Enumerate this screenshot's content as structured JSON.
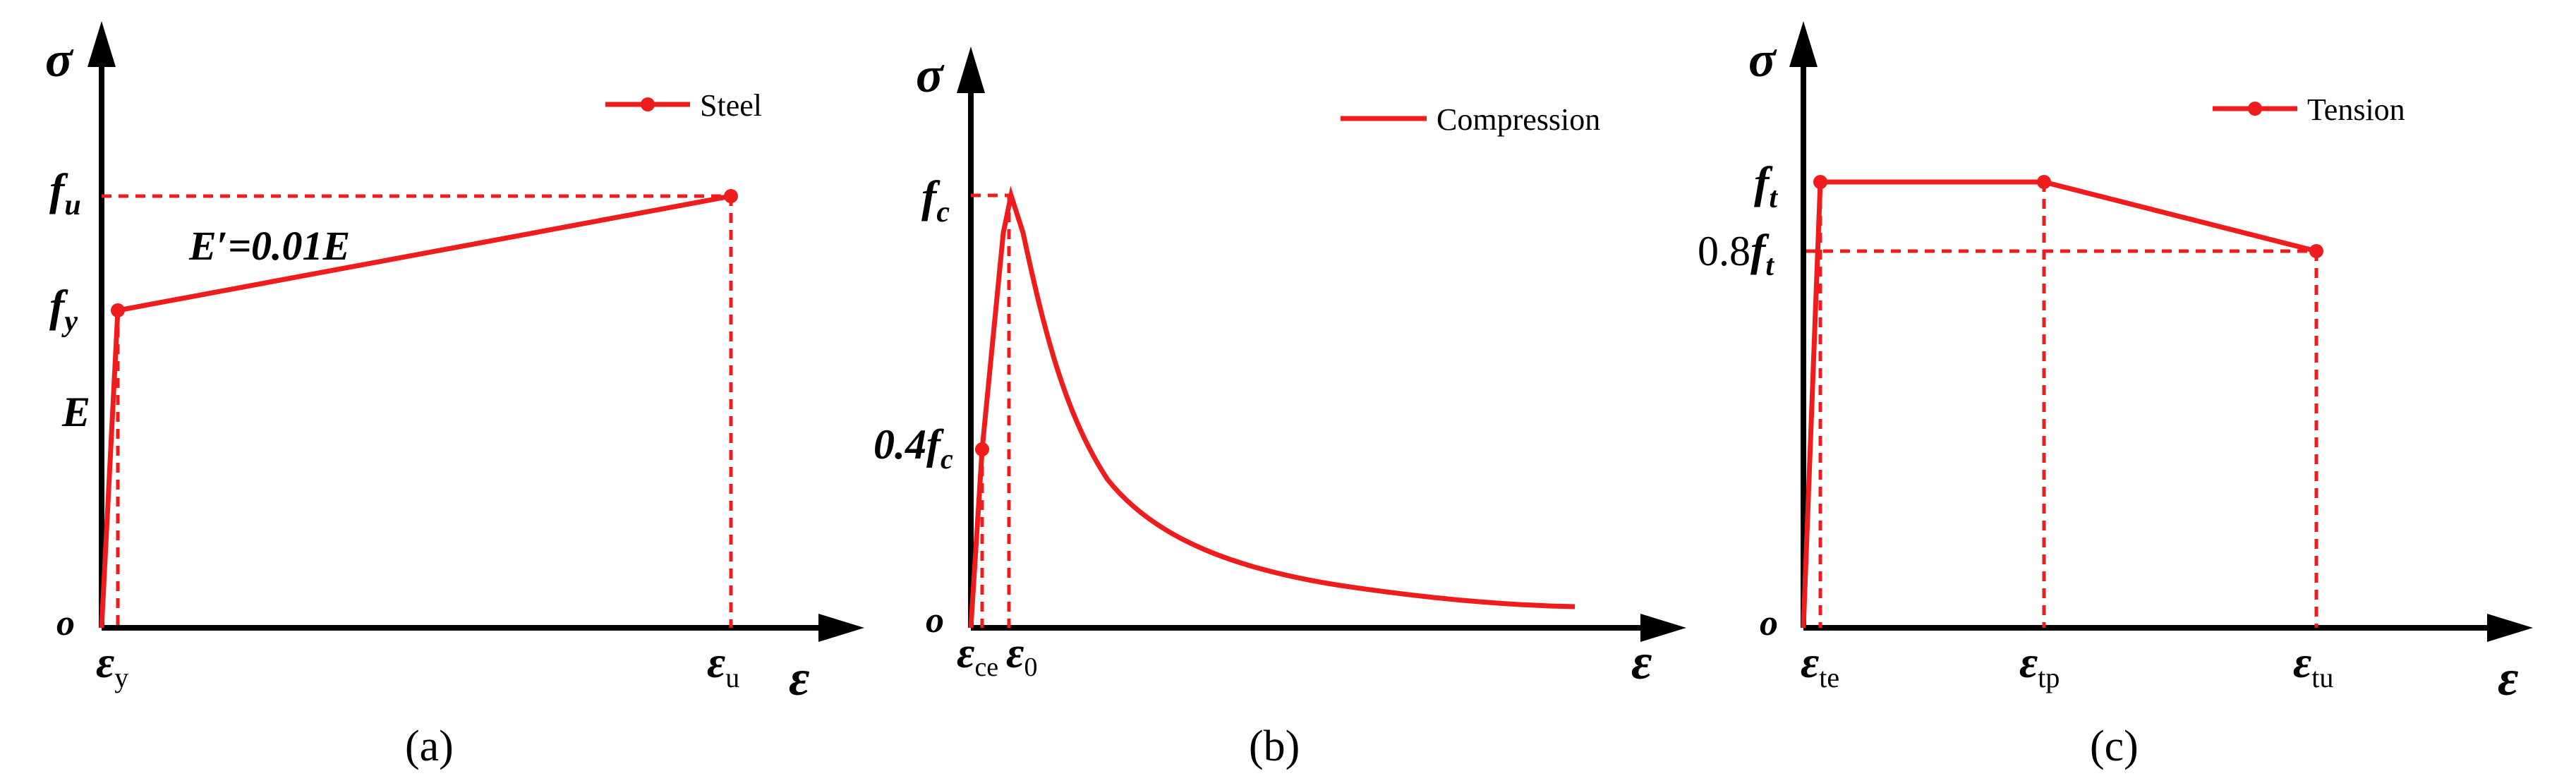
{
  "colors": {
    "curve": "#ee1c1c",
    "axis": "#000000",
    "background": "#ffffff"
  },
  "panels": {
    "a": {
      "caption": "(a)",
      "legend": "Steel",
      "y_axis": "σ",
      "x_axis": "ε",
      "origin": "o",
      "labels": {
        "fu_main": "f",
        "fu_sub": "u",
        "fy_main": "f",
        "fy_sub": "y",
        "E": "E",
        "slope": "E′=0.01E",
        "eps_y_main": "ε",
        "eps_y_sub": "y",
        "eps_u_main": "ε",
        "eps_u_sub": "u"
      }
    },
    "b": {
      "caption": "(b)",
      "legend": "Compression",
      "y_axis": "σ",
      "x_axis": "ε",
      "origin": "o",
      "labels": {
        "fc_main": "f",
        "fc_sub": "c",
        "fc04_pre": "0.4",
        "fc04_main": "f",
        "fc04_sub": "c",
        "eps_ce_main": "ε",
        "eps_ce_sub": "ce",
        "eps_0_main": "ε",
        "eps_0_sub": "0"
      }
    },
    "c": {
      "caption": "(c)",
      "legend": "Tension",
      "y_axis": "σ",
      "x_axis": "ε",
      "origin": "o",
      "labels": {
        "ft_main": "f",
        "ft_sub": "t",
        "ft08_pre": "0.8",
        "ft08_main": "f",
        "ft08_sub": "t",
        "eps_te_main": "ε",
        "eps_te_sub": "te",
        "eps_tp_main": "ε",
        "eps_tp_sub": "tp",
        "eps_tu_main": "ε",
        "eps_tu_sub": "tu"
      }
    }
  }
}
